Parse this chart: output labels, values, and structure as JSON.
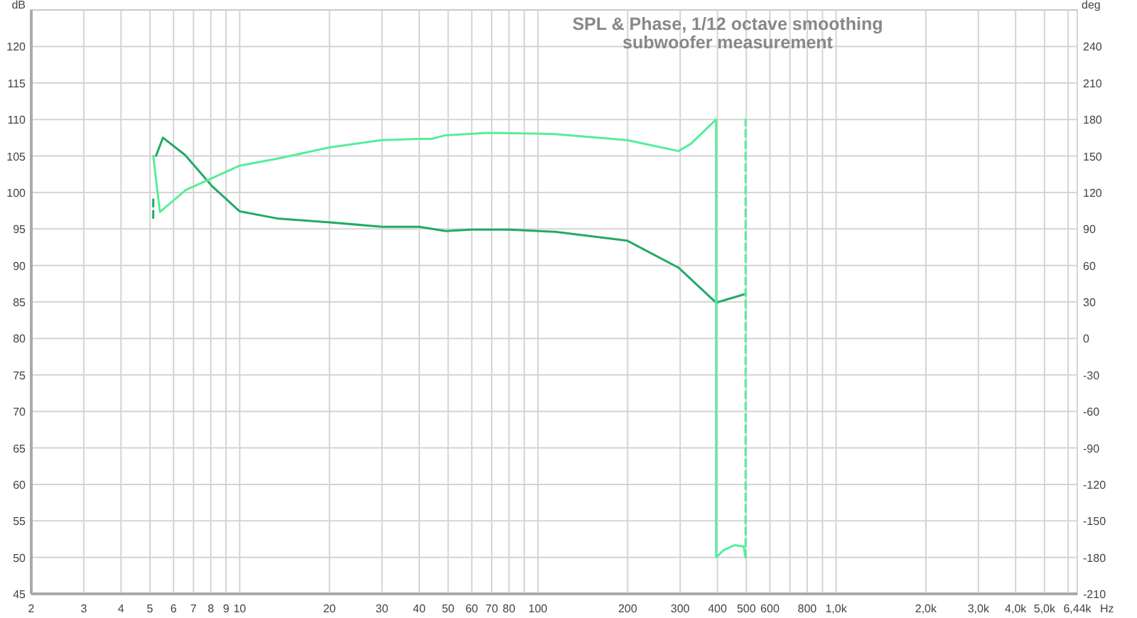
{
  "chart_data": {
    "type": "line",
    "title": "SPL & Phase, 1/12 octave smoothing",
    "subtitle": "subwoofer measurement",
    "ylabel": "dB",
    "y2label": "deg",
    "xlabel": "Hz",
    "log": "x",
    "grid": true,
    "xlim": [
      2,
      6440
    ],
    "xticks": [
      2,
      3,
      4,
      5,
      6,
      7,
      8,
      9,
      10,
      20,
      30,
      40,
      50,
      60,
      70,
      80,
      {
        "value": 90,
        "label": null
      },
      100,
      200,
      300,
      400,
      500,
      600,
      {
        "value": 700,
        "label": null
      },
      800,
      {
        "value": 900,
        "label": null
      },
      {
        "value": 1000,
        "label": "1,0k"
      },
      {
        "value": 2000,
        "label": "2,0k"
      },
      {
        "value": 3000,
        "label": "3,0k"
      },
      {
        "value": 4000,
        "label": "4,0k"
      },
      {
        "value": 5000,
        "label": "5,0k"
      },
      {
        "value": 6000,
        "label": null
      },
      {
        "value": 6440,
        "label": "6,44k"
      }
    ],
    "ylim": [
      45,
      125
    ],
    "yticks": [
      45,
      50,
      55,
      60,
      65,
      70,
      75,
      80,
      85,
      90,
      95,
      100,
      105,
      110,
      115,
      120
    ],
    "y2lim": [
      -210,
      270
    ],
    "y2ticks": [
      -210,
      -180,
      -150,
      -120,
      -90,
      -60,
      -30,
      0,
      30,
      60,
      90,
      120,
      150,
      180,
      210,
      240
    ],
    "series": [
      {
        "color": "#22aa66",
        "x": [
          5.24,
          5.53,
          6.57,
          8.06,
          10,
          13.5,
          20,
          30,
          40,
          49,
          60,
          80,
          114,
          199,
          296,
          396,
          497
        ],
        "values": [
          105.0,
          107.5,
          105.1,
          100.9,
          97.4,
          96.4,
          95.9,
          95.3,
          95.3,
          94.7,
          94.9,
          94.9,
          94.6,
          93.4,
          89.7,
          84.9,
          86.1
        ]
      },
      {
        "color": "#22aa66",
        "line_style": "dashed",
        "x": [
          5.13,
          5.13
        ],
        "values": [
          96.5,
          99.3
        ]
      },
      {
        "color": "#55ee99",
        "axis": "y2",
        "x": [
          5.13,
          5.4,
          6.6,
          10,
          13.5,
          20,
          30,
          40,
          44,
          49,
          68,
          114,
          199,
          296,
          326,
          396,
          396,
          420,
          456,
          490,
          497
        ],
        "values": [
          150,
          104,
          122,
          142,
          148,
          157,
          163,
          164,
          164,
          167,
          169,
          168,
          163,
          154,
          160,
          180,
          -180,
          -174,
          -170,
          -171,
          -180
        ]
      },
      {
        "color": "#55ee99",
        "axis": "y2",
        "line_style": "dashed",
        "x": [
          497,
          497
        ],
        "values": [
          -180,
          180
        ]
      }
    ]
  }
}
